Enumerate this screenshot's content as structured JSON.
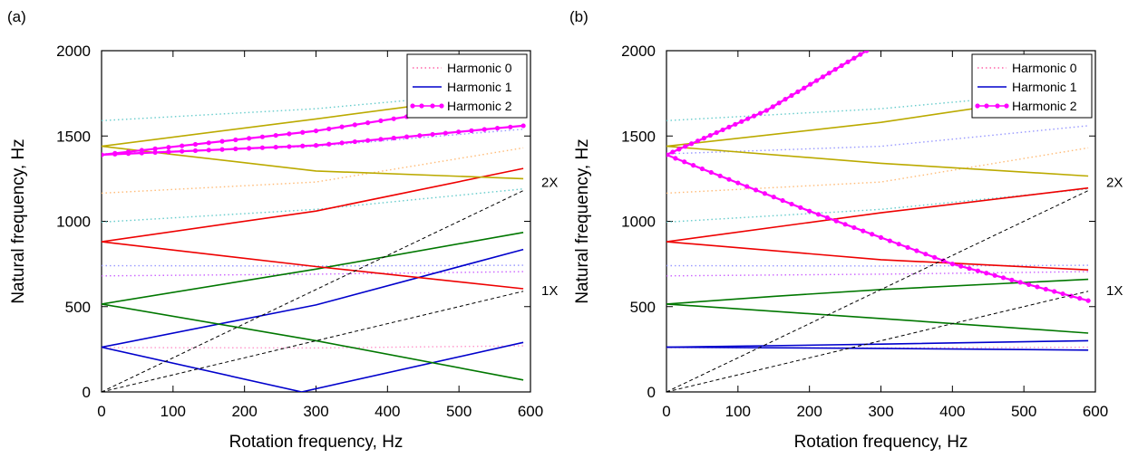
{
  "chart_data": [
    {
      "type": "line",
      "panel_label": "(a)",
      "xlabel": "Rotation frequency, Hz",
      "ylabel": "Natural frequency, Hz",
      "xlim": [
        0,
        600
      ],
      "ylim": [
        0,
        2000
      ],
      "xticks": [
        "0",
        "100",
        "200",
        "300",
        "400",
        "500",
        "600"
      ],
      "yticks": [
        "0",
        "500",
        "1000",
        "1500",
        "2000"
      ],
      "grid": false,
      "legend_position": "top-right",
      "legend": [
        {
          "label": "Harmonic 0",
          "style": "dotted",
          "color": "#ff66aa"
        },
        {
          "label": "Harmonic 1",
          "style": "solid",
          "color": "#0000cc"
        },
        {
          "label": "Harmonic 2",
          "style": "solid-markers",
          "color": "#ff00ff"
        }
      ],
      "reference_lines": [
        {
          "label": "2X",
          "points": [
            [
              0,
              0
            ],
            [
              590,
              1180
            ]
          ]
        },
        {
          "label": "1X",
          "points": [
            [
              0,
              0
            ],
            [
              590,
              590
            ]
          ]
        }
      ],
      "series": [
        {
          "style": "dotted",
          "color": "#ff99cc",
          "points": [
            [
              0,
              260
            ],
            [
              300,
              258
            ],
            [
              590,
              270
            ]
          ]
        },
        {
          "style": "dotted",
          "color": "#cc66ff",
          "points": [
            [
              0,
              680
            ],
            [
              300,
              690
            ],
            [
              590,
              705
            ]
          ]
        },
        {
          "style": "dotted",
          "color": "#9999ff",
          "points": [
            [
              0,
              740
            ],
            [
              300,
              738
            ],
            [
              590,
              742
            ]
          ]
        },
        {
          "style": "dotted",
          "color": "#66cccc",
          "points": [
            [
              0,
              995
            ],
            [
              300,
              1070
            ],
            [
              590,
              1190
            ]
          ]
        },
        {
          "style": "dotted",
          "color": "#ffbb77",
          "points": [
            [
              0,
              1165
            ],
            [
              300,
              1230
            ],
            [
              590,
              1430
            ]
          ]
        },
        {
          "style": "dotted",
          "color": "#9999ff",
          "points": [
            [
              0,
              1395
            ],
            [
              300,
              1440
            ],
            [
              590,
              1540
            ]
          ]
        },
        {
          "style": "dotted",
          "color": "#66cccc",
          "points": [
            [
              0,
              1590
            ],
            [
              300,
              1660
            ],
            [
              590,
              1770
            ]
          ]
        },
        {
          "style": "solid",
          "color": "#0000cc",
          "points": [
            [
              0,
              262
            ],
            [
              300,
              510
            ],
            [
              590,
              835
            ]
          ]
        },
        {
          "style": "solid",
          "color": "#0000cc",
          "points": [
            [
              0,
              262
            ],
            [
              280,
              0
            ],
            [
              590,
              290
            ]
          ]
        },
        {
          "style": "solid",
          "color": "#007700",
          "points": [
            [
              0,
              515
            ],
            [
              300,
              720
            ],
            [
              590,
              935
            ]
          ]
        },
        {
          "style": "solid",
          "color": "#007700",
          "points": [
            [
              0,
              515
            ],
            [
              300,
              300
            ],
            [
              590,
              70
            ]
          ]
        },
        {
          "style": "solid",
          "color": "#ee0000",
          "points": [
            [
              0,
              880
            ],
            [
              300,
              1060
            ],
            [
              590,
              1310
            ]
          ]
        },
        {
          "style": "solid",
          "color": "#ee0000",
          "points": [
            [
              0,
              880
            ],
            [
              300,
              735
            ],
            [
              590,
              605
            ]
          ]
        },
        {
          "style": "solid",
          "color": "#bbaa00",
          "points": [
            [
              0,
              1440
            ],
            [
              300,
              1600
            ],
            [
              590,
              1760
            ]
          ]
        },
        {
          "style": "solid",
          "color": "#bbaa00",
          "points": [
            [
              0,
              1440
            ],
            [
              300,
              1295
            ],
            [
              590,
              1250
            ]
          ]
        },
        {
          "style": "solid-markers",
          "color": "#ff00ff",
          "points": [
            [
              0,
              1390
            ],
            [
              300,
              1530
            ],
            [
              590,
              1720
            ]
          ]
        },
        {
          "style": "solid-markers",
          "color": "#ff00ff",
          "points": [
            [
              0,
              1390
            ],
            [
              300,
              1445
            ],
            [
              590,
              1560
            ]
          ]
        }
      ]
    },
    {
      "type": "line",
      "panel_label": "(b)",
      "xlabel": "Rotation frequency, Hz",
      "ylabel": "Natural frequency, Hz",
      "xlim": [
        0,
        600
      ],
      "ylim": [
        0,
        2000
      ],
      "xticks": [
        "0",
        "100",
        "200",
        "300",
        "400",
        "500",
        "600"
      ],
      "yticks": [
        "0",
        "500",
        "1000",
        "1500",
        "2000"
      ],
      "grid": false,
      "legend_position": "top-right",
      "legend": [
        {
          "label": "Harmonic 0",
          "style": "dotted",
          "color": "#ff66aa"
        },
        {
          "label": "Harmonic 1",
          "style": "solid",
          "color": "#0000cc"
        },
        {
          "label": "Harmonic 2",
          "style": "solid-markers",
          "color": "#ff00ff"
        }
      ],
      "reference_lines": [
        {
          "label": "2X",
          "points": [
            [
              0,
              0
            ],
            [
              590,
              1180
            ]
          ]
        },
        {
          "label": "1X",
          "points": [
            [
              0,
              0
            ],
            [
              590,
              590
            ]
          ]
        }
      ],
      "series": [
        {
          "style": "dotted",
          "color": "#ff99cc",
          "points": [
            [
              0,
              260
            ],
            [
              300,
              258
            ],
            [
              590,
              262
            ]
          ]
        },
        {
          "style": "dotted",
          "color": "#cc66ff",
          "points": [
            [
              0,
              680
            ],
            [
              300,
              690
            ],
            [
              590,
              705
            ]
          ]
        },
        {
          "style": "dotted",
          "color": "#9999ff",
          "points": [
            [
              0,
              740
            ],
            [
              300,
              738
            ],
            [
              590,
              742
            ]
          ]
        },
        {
          "style": "dotted",
          "color": "#66cccc",
          "points": [
            [
              0,
              995
            ],
            [
              300,
              1070
            ],
            [
              590,
              1190
            ]
          ]
        },
        {
          "style": "dotted",
          "color": "#ffbb77",
          "points": [
            [
              0,
              1165
            ],
            [
              300,
              1230
            ],
            [
              590,
              1430
            ]
          ]
        },
        {
          "style": "dotted",
          "color": "#9999ff",
          "points": [
            [
              0,
              1395
            ],
            [
              300,
              1440
            ],
            [
              590,
              1560
            ]
          ]
        },
        {
          "style": "dotted",
          "color": "#66cccc",
          "points": [
            [
              0,
              1590
            ],
            [
              300,
              1660
            ],
            [
              590,
              1770
            ]
          ]
        },
        {
          "style": "solid",
          "color": "#0000cc",
          "points": [
            [
              0,
              262
            ],
            [
              300,
              280
            ],
            [
              590,
              300
            ]
          ]
        },
        {
          "style": "solid",
          "color": "#0000cc",
          "points": [
            [
              0,
              262
            ],
            [
              300,
              255
            ],
            [
              590,
              245
            ]
          ]
        },
        {
          "style": "solid",
          "color": "#007700",
          "points": [
            [
              0,
              515
            ],
            [
              150,
              560
            ],
            [
              300,
              600
            ],
            [
              590,
              660
            ]
          ]
        },
        {
          "style": "solid",
          "color": "#007700",
          "points": [
            [
              0,
              515
            ],
            [
              300,
              430
            ],
            [
              590,
              345
            ]
          ]
        },
        {
          "style": "solid",
          "color": "#ee0000",
          "points": [
            [
              0,
              880
            ],
            [
              300,
              1050
            ],
            [
              590,
              1195
            ]
          ]
        },
        {
          "style": "solid",
          "color": "#ee0000",
          "points": [
            [
              0,
              880
            ],
            [
              300,
              775
            ],
            [
              590,
              715
            ]
          ]
        },
        {
          "style": "solid",
          "color": "#bbaa00",
          "points": [
            [
              0,
              1440
            ],
            [
              300,
              1580
            ],
            [
              590,
              1760
            ]
          ]
        },
        {
          "style": "solid",
          "color": "#bbaa00",
          "points": [
            [
              0,
              1440
            ],
            [
              300,
              1340
            ],
            [
              590,
              1265
            ]
          ]
        },
        {
          "style": "solid-markers",
          "color": "#ff00ff",
          "points": [
            [
              0,
              1390
            ],
            [
              140,
              1650
            ],
            [
              280,
              2000
            ]
          ]
        },
        {
          "style": "solid-markers",
          "color": "#ff00ff",
          "points": [
            [
              0,
              1390
            ],
            [
              200,
              1060
            ],
            [
              400,
              750
            ],
            [
              590,
              535
            ]
          ]
        }
      ]
    }
  ]
}
